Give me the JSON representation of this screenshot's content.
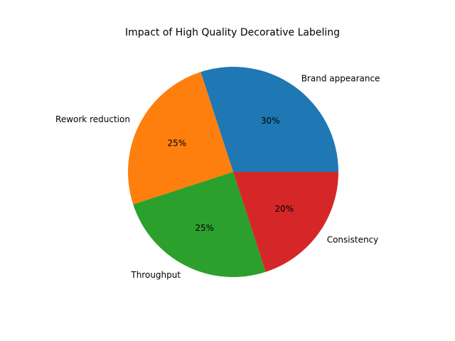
{
  "chart_data": {
    "type": "pie",
    "title": "Impact of High Quality Decorative Labeling",
    "categories": [
      "Brand appearance",
      "Rework reduction",
      "Throughput",
      "Consistency"
    ],
    "values": [
      30,
      25,
      25,
      20
    ],
    "value_labels": [
      "30%",
      "25%",
      "25%",
      "20%"
    ],
    "colors": [
      "#1f77b4",
      "#ff7f0e",
      "#2ca02c",
      "#d62728"
    ],
    "start_angle_deg": 0,
    "direction": "counterclockwise",
    "legend": "none"
  }
}
